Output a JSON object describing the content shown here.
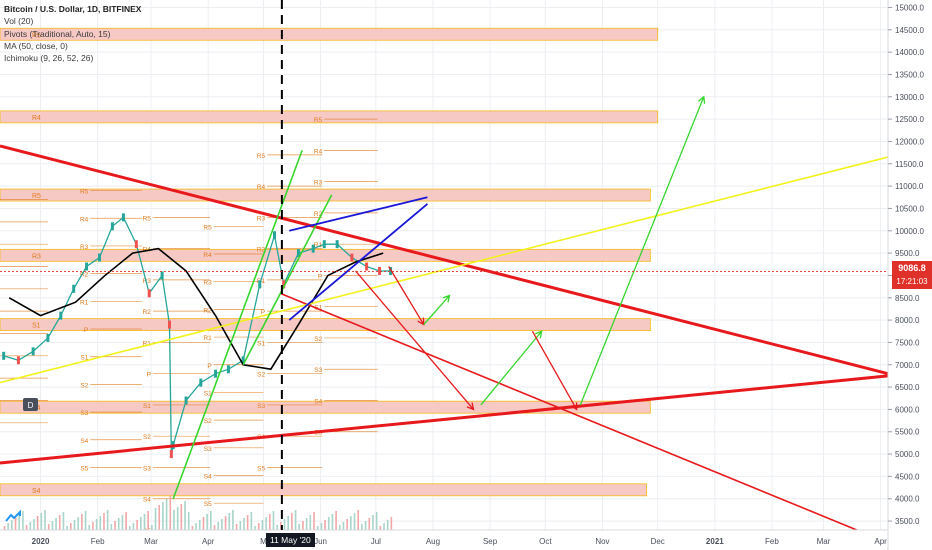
{
  "legend": {
    "title": "Bitcoin / U.S. Dollar, 1D, BITFINEX",
    "vol": "Vol (20)",
    "pivots": "Pivots (Traditional, Auto, 15)",
    "ma": "MA (50, close, 0)",
    "ichimoku": "Ichimoku (9, 26, 52, 26)"
  },
  "price_tag": {
    "price": "9086.8",
    "countdown": "17:21:03",
    "color": "#e0302a"
  },
  "cursor_date": "11 May '20",
  "event_marker": "D",
  "colors": {
    "resistance_zone": "#f7c9c5",
    "zone_border": "#f5b91a",
    "pivot_label": "#e07a1a",
    "red_line": "#e8191c",
    "yellow_line": "#f2f21c",
    "green_line": "#36d62c",
    "blue_line": "#1a17d8",
    "ma_line": "#000000",
    "grid": "#eceef2"
  },
  "chart_data": {
    "type": "line",
    "symbol": "BTC/USD",
    "interval": "1D",
    "exchange": "BITFINEX",
    "y_axis": {
      "ticks": [
        3500,
        4000,
        4500,
        5000,
        5500,
        6000,
        6500,
        7000,
        7500,
        8000,
        8500,
        9000,
        9500,
        10000,
        10500,
        11000,
        11500,
        12000,
        12500,
        13000,
        13500,
        14000,
        14500,
        15000
      ],
      "tick_labels": [
        "3500.0",
        "4000.0",
        "4500.0",
        "5000.0",
        "5500.0",
        "6000.0",
        "6500.0",
        "7000.0",
        "7500.0",
        "8000.0",
        "8500.0",
        "9000.0",
        "9500.0",
        "10000.0",
        "10500.0",
        "11000.0",
        "11500.0",
        "12000.0",
        "12500.0",
        "13000.0",
        "13500.0",
        "14000.0",
        "14500.0",
        "15000.0"
      ],
      "range": [
        3300,
        15100
      ]
    },
    "x_axis": {
      "ticks": [
        "2020-01-01",
        "2020-02-01",
        "2020-03-01",
        "2020-04-01",
        "2020-05-01",
        "2020-06-01",
        "2020-07-01",
        "2020-08-01",
        "2020-09-01",
        "2020-10-01",
        "2020-11-01",
        "2020-12-01",
        "2021-01-01",
        "2021-02-01",
        "2021-03-01",
        "2021-04-01"
      ],
      "tick_labels": [
        "2020",
        "Feb",
        "Mar",
        "Apr",
        "M",
        "Jun",
        "Jul",
        "Aug",
        "Sep",
        "Oct",
        "Nov",
        "Dec",
        "2021",
        "Feb",
        "Mar",
        "Apr"
      ],
      "range": [
        "2019-12-10",
        "2021-04-05"
      ]
    },
    "price_series": {
      "name": "BTCUSD",
      "x": [
        "2019-12-12",
        "2019-12-20",
        "2019-12-28",
        "2020-01-05",
        "2020-01-12",
        "2020-01-19",
        "2020-01-26",
        "2020-02-02",
        "2020-02-09",
        "2020-02-15",
        "2020-02-22",
        "2020-02-29",
        "2020-03-07",
        "2020-03-11",
        "2020-03-12",
        "2020-03-13",
        "2020-03-20",
        "2020-03-28",
        "2020-04-05",
        "2020-04-12",
        "2020-04-20",
        "2020-04-29",
        "2020-05-07",
        "2020-05-12",
        "2020-05-20",
        "2020-05-28",
        "2020-06-03",
        "2020-06-10",
        "2020-06-18",
        "2020-06-26",
        "2020-07-03",
        "2020-07-09"
      ],
      "y": [
        7200,
        7100,
        7300,
        7600,
        8100,
        8700,
        9200,
        9400,
        10100,
        10300,
        9700,
        8600,
        9000,
        7900,
        5000,
        5200,
        6200,
        6600,
        6800,
        6900,
        7100,
        8800,
        9900,
        8800,
        9500,
        9600,
        9700,
        9700,
        9400,
        9200,
        9100,
        9100
      ]
    },
    "ma_series": {
      "name": "MA 50",
      "x": [
        "2019-12-15",
        "2020-01-01",
        "2020-01-20",
        "2020-02-05",
        "2020-02-20",
        "2020-03-05",
        "2020-03-20",
        "2020-04-05",
        "2020-04-20",
        "2020-05-05",
        "2020-05-20",
        "2020-06-05",
        "2020-06-20",
        "2020-07-05"
      ],
      "y": [
        8500,
        8100,
        8400,
        9000,
        9500,
        9600,
        9100,
        8100,
        7000,
        6900,
        7900,
        9000,
        9300,
        9500
      ]
    },
    "pivot_zones": [
      {
        "label": "R5",
        "level": 14400,
        "from": "2019-12-10",
        "to": "2020-12-01"
      },
      {
        "label": "R4",
        "level": 12550,
        "from": "2019-12-10",
        "to": "2020-12-01"
      },
      {
        "label": "R5",
        "level": 10800,
        "from": "2019-12-10",
        "to": "2020-11-27"
      },
      {
        "label": "R3",
        "level": 9450,
        "from": "2019-12-10",
        "to": "2020-11-27"
      },
      {
        "label": "S1",
        "level": 7900,
        "from": "2019-12-10",
        "to": "2020-11-27"
      },
      {
        "label": "S4",
        "level": 6050,
        "from": "2019-12-10",
        "to": "2020-11-27"
      },
      {
        "label": "S4",
        "level": 4200,
        "from": "2019-12-10",
        "to": "2020-11-25"
      }
    ],
    "pivot_labels": [
      "R5",
      "R4",
      "R3",
      "R2",
      "R1",
      "P",
      "S1",
      "S2",
      "S3",
      "S4",
      "S5"
    ],
    "trendlines": [
      {
        "name": "red-upper",
        "color": "#e8191c",
        "from": [
          "2019-12-10",
          11900
        ],
        "to": [
          "2021-04-05",
          6800
        ]
      },
      {
        "name": "red-lower",
        "color": "#e8191c",
        "from": [
          "2019-12-10",
          4800
        ],
        "to": [
          "2021-04-05",
          6750
        ]
      },
      {
        "name": "red-thin",
        "color": "#e8191c",
        "from": [
          "2020-05-10",
          8600
        ],
        "to": [
          "2021-03-25",
          3200
        ]
      },
      {
        "name": "yellow",
        "color": "#f2f21c",
        "from": [
          "2019-12-10",
          6600
        ],
        "to": [
          "2021-04-05",
          11650
        ]
      },
      {
        "name": "green-1",
        "color": "#36d62c",
        "from": [
          "2020-03-13",
          4000
        ],
        "to": [
          "2020-05-22",
          11800
        ]
      },
      {
        "name": "green-2",
        "color": "#36d62c",
        "from": [
          "2020-04-20",
          7000
        ],
        "to": [
          "2020-06-07",
          10800
        ]
      },
      {
        "name": "blue-upper",
        "color": "#1a17d8",
        "from": [
          "2020-05-15",
          10000
        ],
        "to": [
          "2020-07-29",
          10750
        ]
      },
      {
        "name": "blue-lower",
        "color": "#1a17d8",
        "from": [
          "2020-05-15",
          8000
        ],
        "to": [
          "2020-07-29",
          10600
        ]
      }
    ],
    "projection_arrows": [
      {
        "color": "#e8191c",
        "x": [
          "2020-07-08",
          "2020-07-27"
        ],
        "y": [
          9200,
          7900
        ]
      },
      {
        "color": "#36d62c",
        "x": [
          "2020-07-27",
          "2020-08-10"
        ],
        "y": [
          7900,
          8550
        ]
      },
      {
        "color": "#e8191c",
        "x": [
          "2020-06-20",
          "2020-08-23"
        ],
        "y": [
          9100,
          6000
        ]
      },
      {
        "color": "#36d62c",
        "x": [
          "2020-08-27",
          "2020-09-29"
        ],
        "y": [
          6100,
          7750
        ]
      },
      {
        "color": "#e8191c",
        "x": [
          "2020-09-24",
          "2020-10-18"
        ],
        "y": [
          7750,
          6000
        ]
      },
      {
        "color": "#36d62c",
        "x": [
          "2020-10-20",
          "2020-12-26"
        ],
        "y": [
          6100,
          13000
        ]
      }
    ],
    "current_price": 9086.8,
    "vertical_marker_date": "2020-05-11"
  }
}
